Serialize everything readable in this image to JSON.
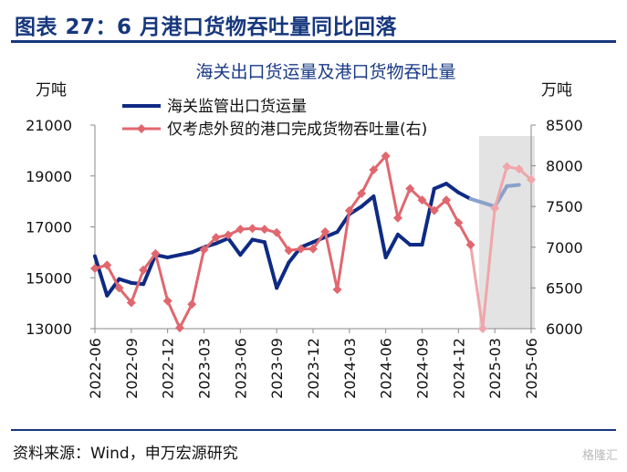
{
  "header": {
    "title": "图表 27：6 月港口货物吞吐量同比回落"
  },
  "source": "资料来源：Wind，申万宏源研究",
  "watermark": "格隆汇",
  "colors": {
    "navy": "#17377d",
    "series1": "#0e2a84",
    "series1_forecast": "#8aa1cc",
    "series2": "#e0676e",
    "series2_forecast": "#f0a6aa",
    "shade": "#e3e3e3"
  },
  "chart_data": {
    "type": "line",
    "title": "海关出口货运量及港口货物吞吐量",
    "y_left_unit": "万吨",
    "y_right_unit": "万吨",
    "y_left_range": [
      13000,
      21000
    ],
    "y_left_ticks": [
      "13000",
      "15000",
      "17000",
      "19000",
      "21000"
    ],
    "y_right_range": [
      6000,
      8500
    ],
    "y_right_ticks": [
      "6000",
      "6500",
      "7000",
      "7500",
      "8000",
      "8500"
    ],
    "x_tick_labels": [
      "2022-06",
      "2022-09",
      "2022-12",
      "2023-03",
      "2023-06",
      "2023-09",
      "2023-12",
      "2024-03",
      "2024-06",
      "2024-09",
      "2024-12",
      "2025-03",
      "2025-06"
    ],
    "x": [
      "2022-06",
      "2022-07",
      "2022-08",
      "2022-09",
      "2022-10",
      "2022-11",
      "2022-12",
      "2023-01",
      "2023-02",
      "2023-03",
      "2023-04",
      "2023-05",
      "2023-06",
      "2023-07",
      "2023-08",
      "2023-09",
      "2023-10",
      "2023-11",
      "2023-12",
      "2024-01",
      "2024-02",
      "2024-03",
      "2024-04",
      "2024-05",
      "2024-06",
      "2024-07",
      "2024-08",
      "2024-09",
      "2024-10",
      "2024-11",
      "2024-12",
      "2025-01",
      "2025-02",
      "2025-03",
      "2025-04",
      "2025-05",
      "2025-06"
    ],
    "shaded_region": [
      "2025-02",
      "2025-06"
    ],
    "series": [
      {
        "name": "海关监管出口货运量",
        "axis": "left",
        "color": "#0e2a84",
        "marker": "none",
        "values": [
          15850,
          14300,
          14950,
          14800,
          14750,
          15900,
          15800,
          15900,
          16000,
          16200,
          16350,
          16550,
          15900,
          16500,
          16400,
          14600,
          15600,
          16200,
          16400,
          16600,
          16800,
          17500,
          17800,
          18200,
          15800,
          16700,
          16300,
          16300,
          18500,
          18700,
          18350,
          18100,
          null,
          17800,
          18600,
          18650,
          null
        ]
      },
      {
        "name": "仅考虑外贸的港口完成货物吞吐量(右)",
        "axis": "right",
        "color": "#e0676e",
        "marker": "diamond",
        "values": [
          6740,
          6780,
          6500,
          6320,
          6720,
          6920,
          6340,
          6010,
          6300,
          6970,
          7120,
          7150,
          7220,
          7230,
          7220,
          7180,
          6960,
          6980,
          6980,
          7190,
          6480,
          7450,
          7660,
          7950,
          8120,
          7360,
          7720,
          7580,
          7450,
          7580,
          7300,
          7030,
          6000,
          7480,
          7990,
          7960,
          7830
        ]
      }
    ],
    "forecast_from": "2025-02"
  }
}
